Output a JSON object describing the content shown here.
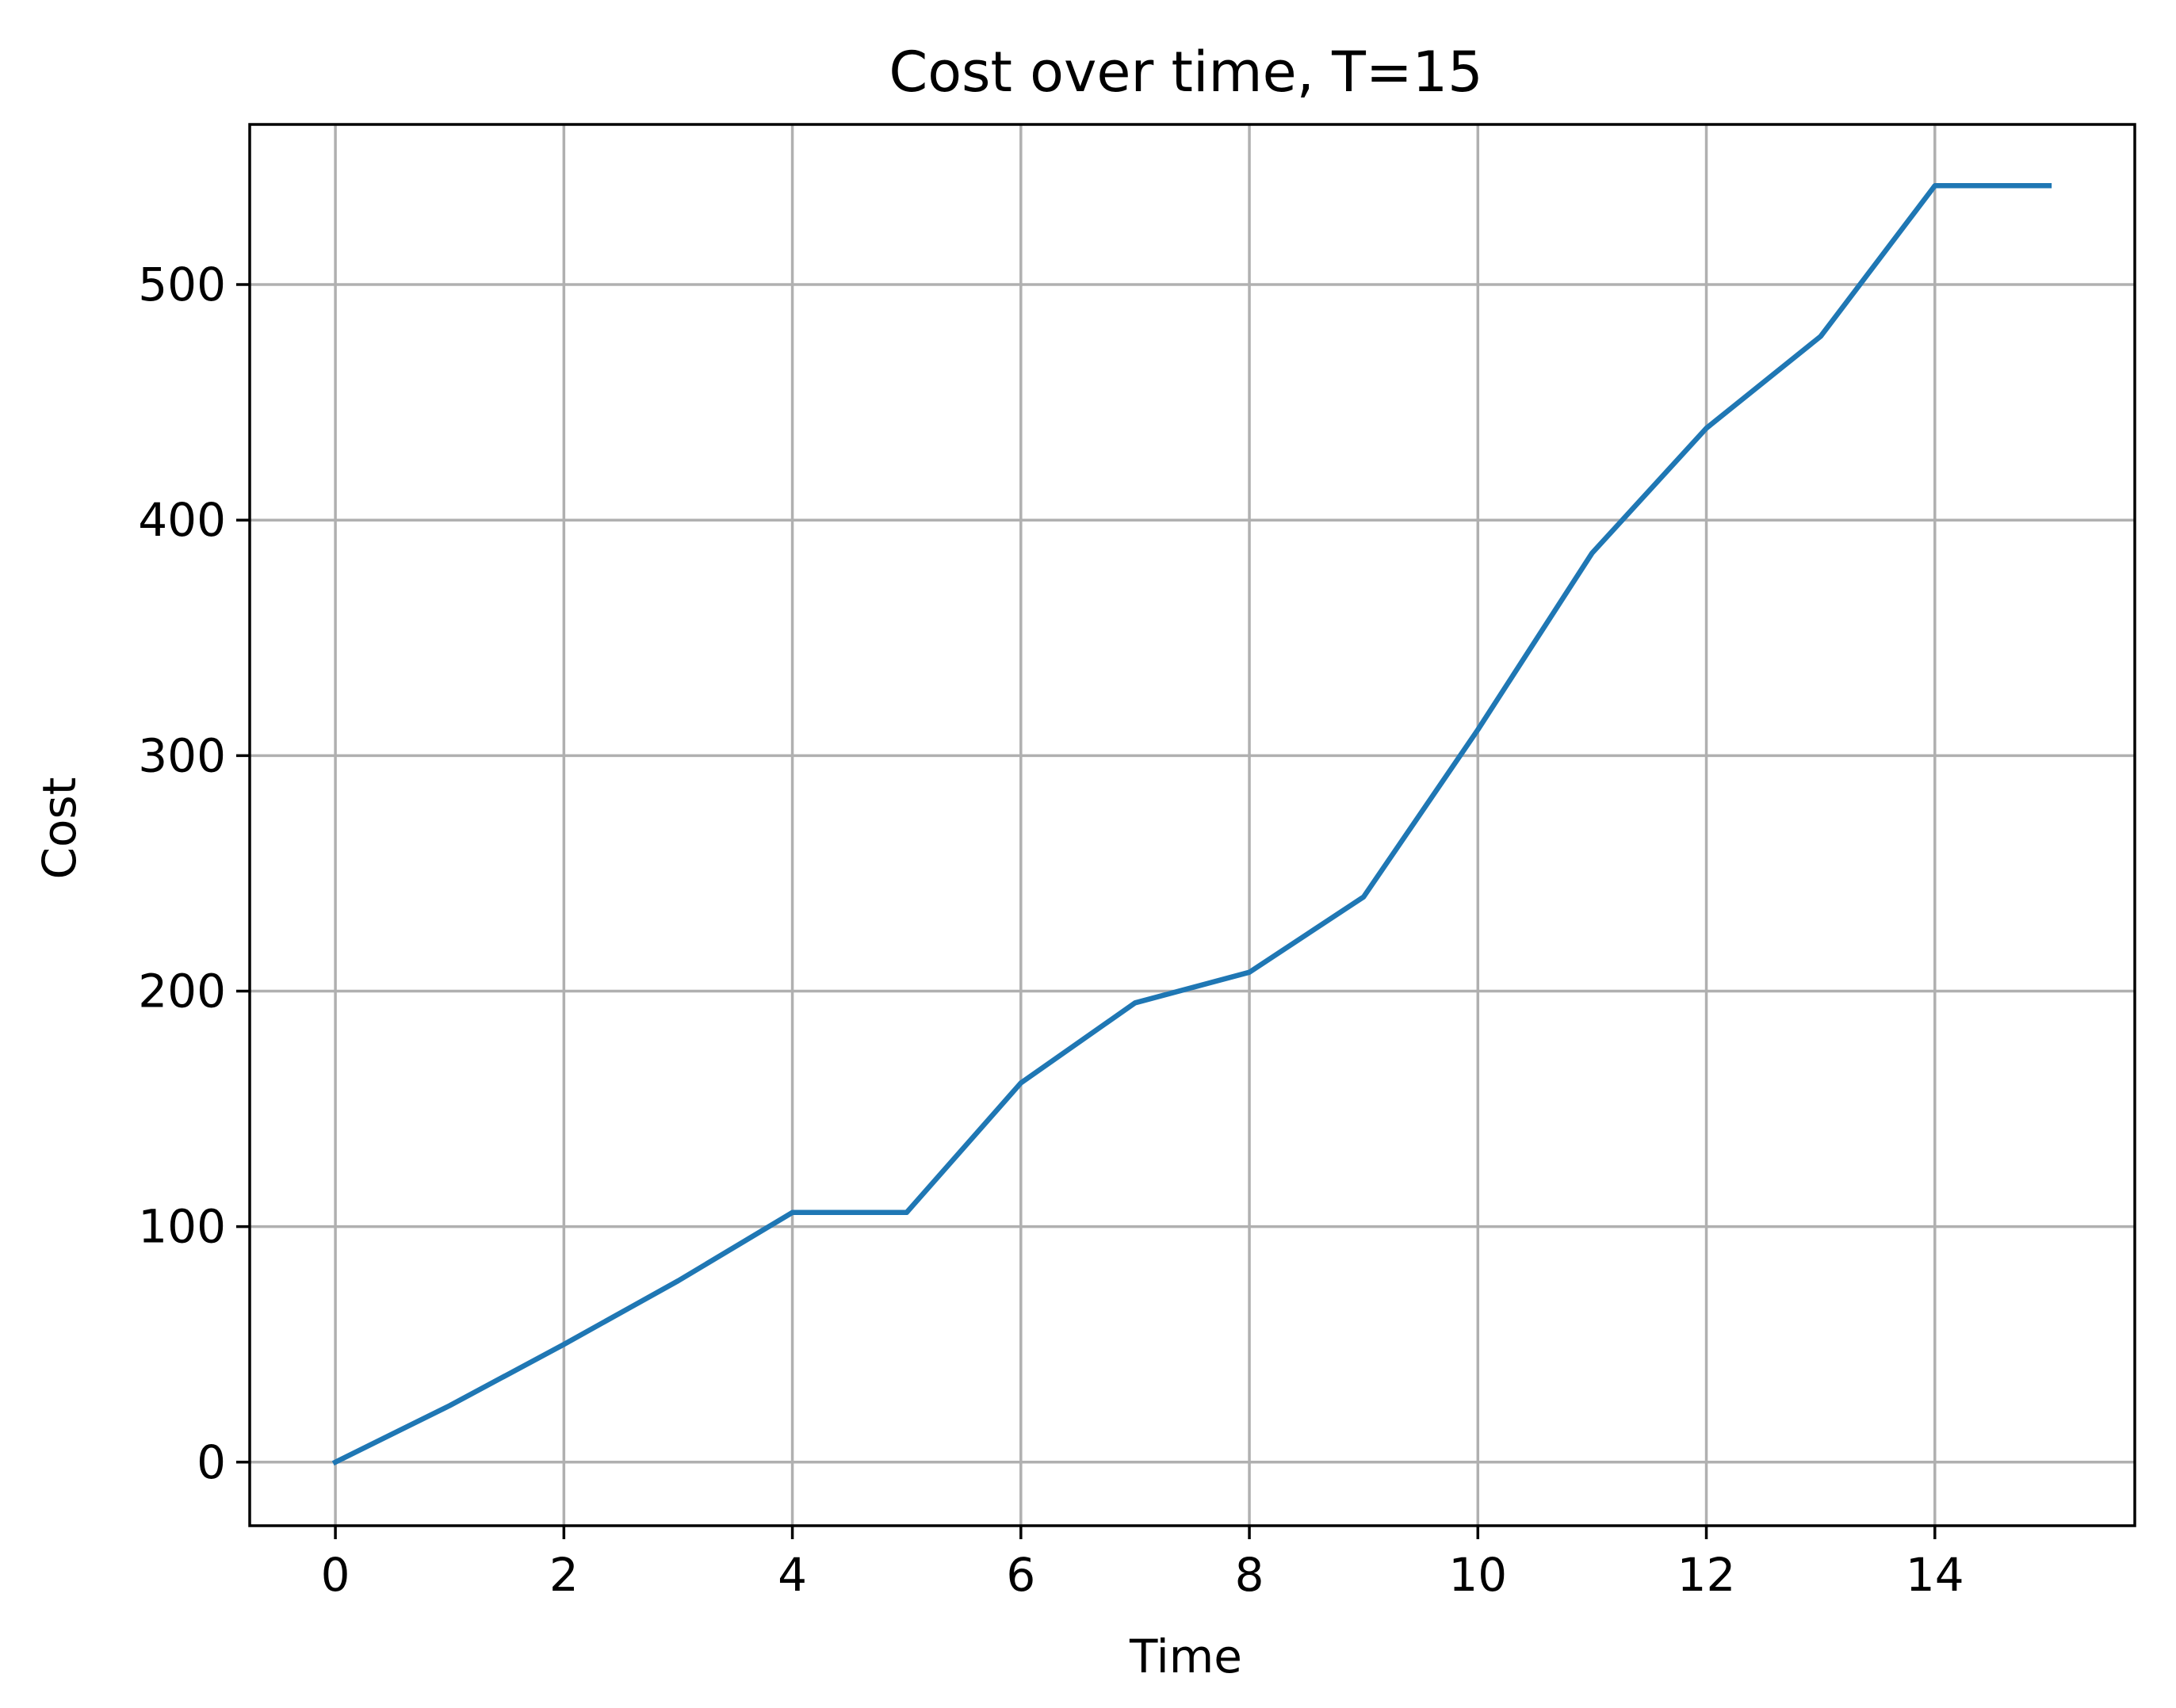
{
  "chart_data": {
    "type": "line",
    "title": "Cost over time, T=15",
    "xlabel": "Time",
    "ylabel": "Cost",
    "xlim": [
      -0.75,
      15.75
    ],
    "ylim": [
      -27,
      568
    ],
    "x_ticks": [
      0,
      2,
      4,
      6,
      8,
      10,
      12,
      14
    ],
    "y_ticks": [
      0,
      100,
      200,
      300,
      400,
      500
    ],
    "grid": true,
    "series": [
      {
        "x": [
          0,
          1,
          2,
          3,
          4,
          5,
          6,
          7,
          8,
          9,
          10,
          11,
          12,
          13,
          14,
          15
        ],
        "values": [
          0,
          24,
          50,
          77,
          106,
          106,
          161,
          195,
          208,
          240,
          311,
          386,
          439,
          478,
          542,
          542
        ],
        "color": "#1f77b4"
      }
    ],
    "colors": {
      "line": "#1f77b4",
      "grid": "#b0b0b0",
      "axes": "#000000"
    }
  }
}
